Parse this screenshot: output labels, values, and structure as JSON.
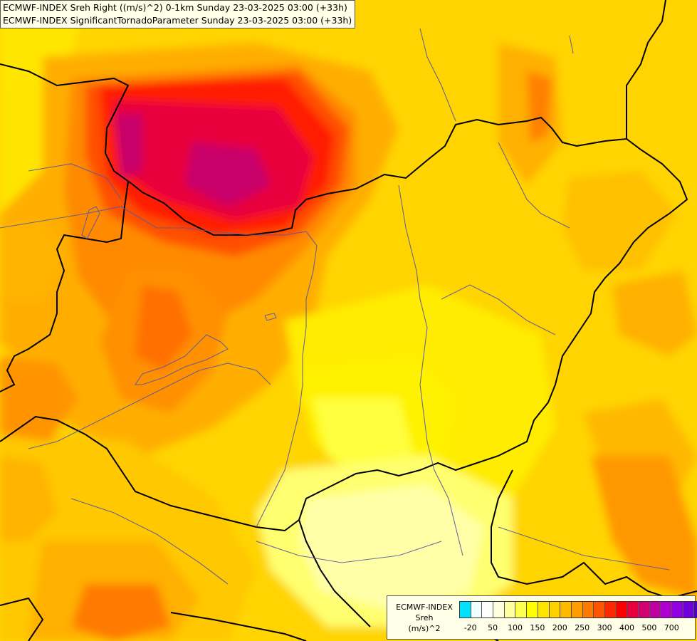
{
  "title": {
    "line1": "ECMWF-INDEX Sreh Right ((m/s)^2) 0-1km Sunday 23-03-2025 03:00 (+33h)",
    "line2": "ECMWF-INDEX SignificantTornadoParameter Sunday 23-03-2025 03:00 (+33h)"
  },
  "legend": {
    "source": "ECMWF-INDEX",
    "variable": "Sreh",
    "unit": "(m/s)^2",
    "colors": [
      "#00e0ff",
      "#f0ffff",
      "#ffffff",
      "#ffffe0",
      "#ffffa0",
      "#ffff50",
      "#ffff00",
      "#ffe400",
      "#ffd000",
      "#ffb800",
      "#ff9c00",
      "#ff7a00",
      "#ff5500",
      "#ff2800",
      "#ff0000",
      "#e8003c",
      "#d00070",
      "#c000a0",
      "#b000d0",
      "#9000e0",
      "#7000d8",
      "#4c00c0",
      "#2400a0",
      "#000078"
    ],
    "ticks": [
      "-20",
      "50",
      "100",
      "150",
      "200",
      "250",
      "300",
      "400",
      "500",
      "700"
    ]
  },
  "colors": {
    "sea": "#ffd400",
    "border": "#000000",
    "river": "#5a5aa0"
  }
}
